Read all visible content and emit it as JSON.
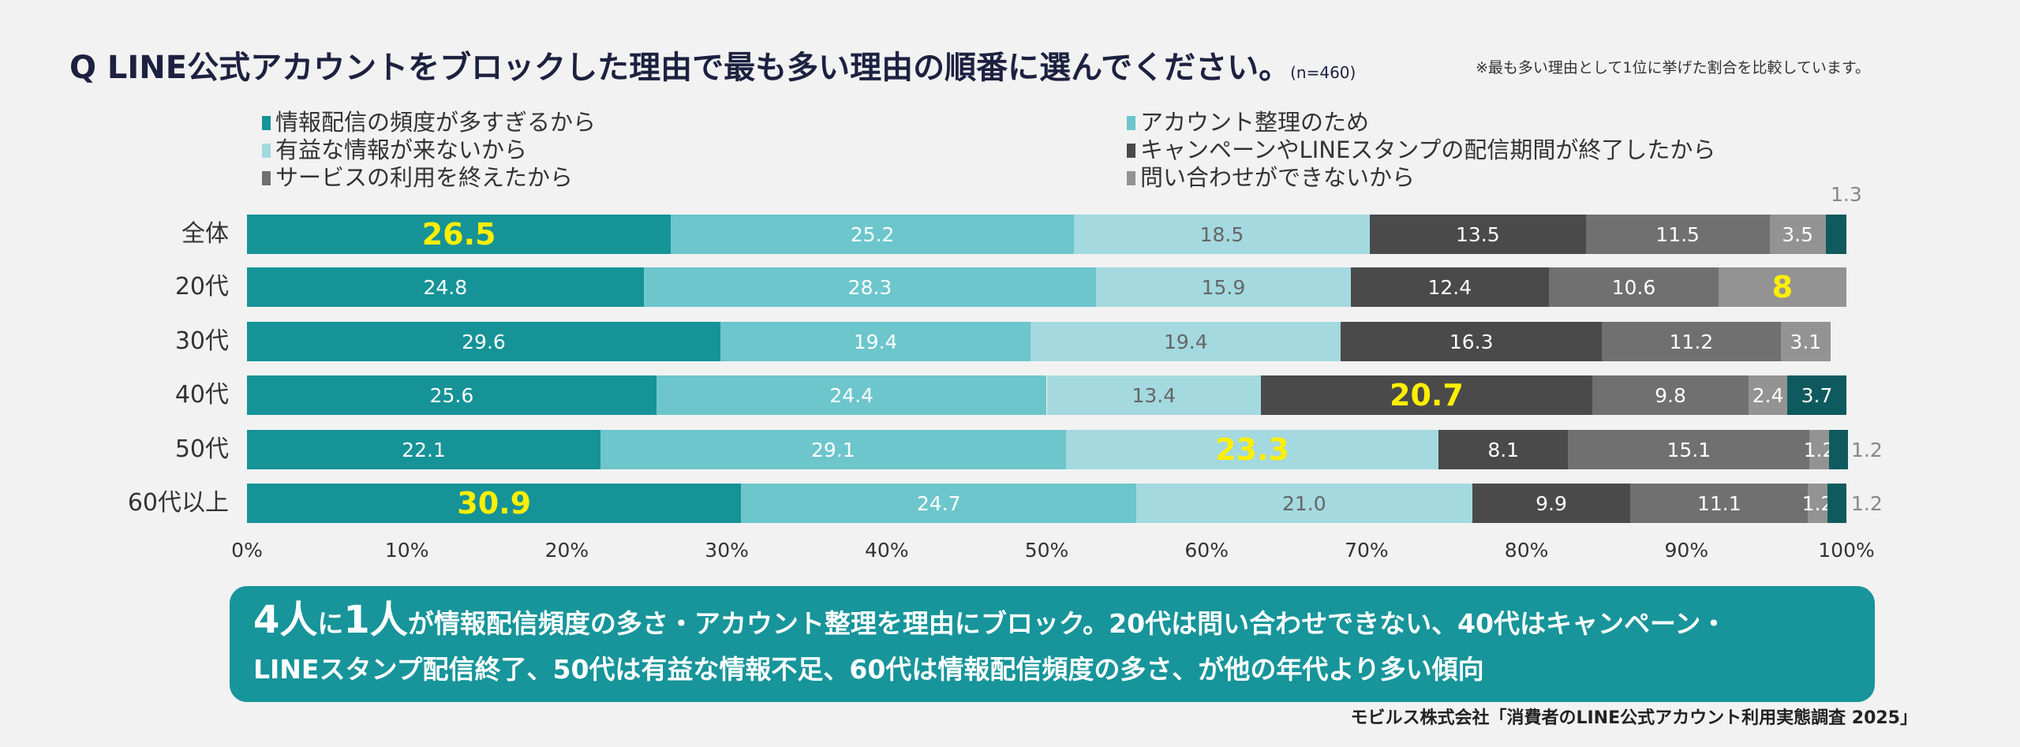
{
  "header": {
    "title": "Q LINE公式アカウントをブロックした理由で最も多い理由の順番に選んでください。",
    "n": "(n=460)",
    "note": "※最も多い理由として1位に挙げた割合を比較しています。"
  },
  "chart_data": {
    "type": "bar",
    "orientation": "horizontal",
    "stacked": true,
    "categories": [
      "全体",
      "20代",
      "30代",
      "40代",
      "50代",
      "60代以上"
    ],
    "xlim": [
      0,
      100
    ],
    "xticks": [
      "0%",
      "10%",
      "20%",
      "30%",
      "40%",
      "50%",
      "60%",
      "70%",
      "80%",
      "90%",
      "100%"
    ],
    "legend_position": "top",
    "series": [
      {
        "name": "情報配信の頻度が多すぎるから",
        "color": "#169397",
        "values": [
          26.5,
          24.8,
          29.6,
          25.6,
          22.1,
          30.9
        ]
      },
      {
        "name": "アカウント整理のため",
        "color": "#6cc6cc",
        "values": [
          25.2,
          28.3,
          19.4,
          24.4,
          29.1,
          24.7
        ]
      },
      {
        "name": "有益な情報が来ないから",
        "color": "#a3d9df",
        "values": [
          18.5,
          15.9,
          19.4,
          13.4,
          23.3,
          21.0
        ]
      },
      {
        "name": "キャンペーンやLINEスタンプの配信期間が終了したから",
        "color": "#4a4a4a",
        "values": [
          13.5,
          12.4,
          16.3,
          20.7,
          8.1,
          9.9
        ]
      },
      {
        "name": "サービスの利用を終えたから",
        "color": "#707070",
        "values": [
          11.5,
          10.6,
          11.2,
          9.8,
          15.1,
          11.1
        ]
      },
      {
        "name": "問い合わせができないから",
        "color": "#939393",
        "values": [
          3.5,
          8,
          3.1,
          2.4,
          1.2,
          1.2
        ]
      },
      {
        "color": "#0f5a5e",
        "values": [
          1.3,
          0,
          0,
          3.7,
          1.2,
          1.2
        ]
      }
    ],
    "highlighted": [
      [
        0,
        0
      ],
      [
        1,
        5
      ],
      [
        3,
        3
      ],
      [
        4,
        2
      ],
      [
        5,
        0
      ]
    ],
    "value_labels": [
      [
        "26.5",
        "25.2",
        "18.5",
        "13.5",
        "11.5",
        "3.5",
        "1.3"
      ],
      [
        "24.8",
        "28.3",
        "15.9",
        "12.4",
        "10.6",
        "8",
        ""
      ],
      [
        "29.6",
        "19.4",
        "19.4",
        "16.3",
        "11.2",
        "3.1",
        ""
      ],
      [
        "25.6",
        "24.4",
        "13.4",
        "20.7",
        "9.8",
        "2.4",
        "3.7"
      ],
      [
        "22.1",
        "29.1",
        "23.3",
        "8.1",
        "15.1",
        "1.2",
        "1.2"
      ],
      [
        "30.9",
        "24.7",
        "21.0",
        "9.9",
        "11.1",
        "1.2",
        "1.2"
      ]
    ]
  },
  "summary": {
    "p1": "4人",
    "p2": "に",
    "p3": "1人",
    "p4": "が情報配信頻度の多さ・アカウント整理を理由にブロック。20代は問い合わせできない、40代はキャンペーン・",
    "p5": "LINEスタンプ配信終了、50代は有益な情報不足、60代は情報配信頻度の多さ、が他の年代より多い傾向"
  },
  "source": "モビルス株式会社「消費者のLINE公式アカウント利用実態調査 2025」"
}
